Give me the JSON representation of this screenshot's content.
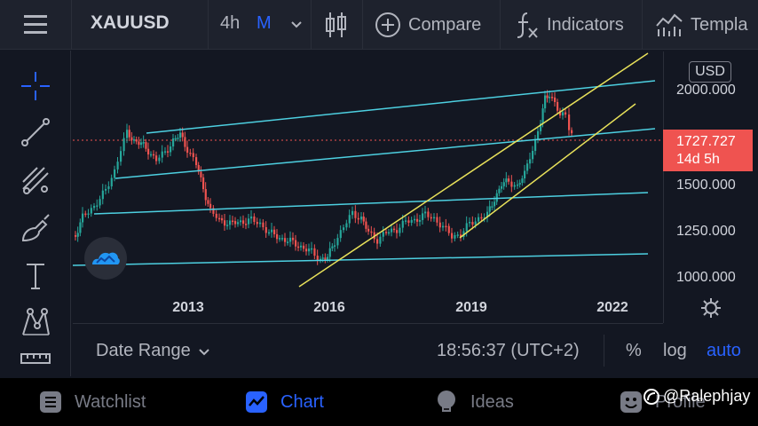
{
  "toolbar": {
    "symbol": "XAUUSD",
    "interval": "4h",
    "chart_style": "M",
    "compare_label": "Compare",
    "indicators_label": "Indicators",
    "templates_label": "Templa"
  },
  "left_tools": [
    "crosshair-icon",
    "trend-line-icon",
    "fib-icon",
    "brush-icon",
    "text-icon",
    "pattern-icon",
    "ruler-icon"
  ],
  "chart": {
    "currency": "USD",
    "price_ticks": [
      "2000.000",
      "1500.000",
      "1250.000",
      "1000.000"
    ],
    "year_ticks": [
      "2013",
      "2016",
      "2019",
      "2022"
    ],
    "current_price": "1727.727",
    "countdown": "14d 5h",
    "colors": {
      "up": "#26a69a",
      "down": "#ef5350",
      "channel": "#4dd0e1",
      "trend": "#e8e15a"
    }
  },
  "bottombar": {
    "date_range_label": "Date Range",
    "clock": "18:56:37 (UTC+2)",
    "percent_label": "%",
    "log_label": "log",
    "auto_label": "auto"
  },
  "nav": {
    "watchlist_label": "Watchlist",
    "chart_label": "Chart",
    "ideas_label": "Ideas",
    "profile_label": "Profile"
  },
  "watermark": "@Ralephjay"
}
